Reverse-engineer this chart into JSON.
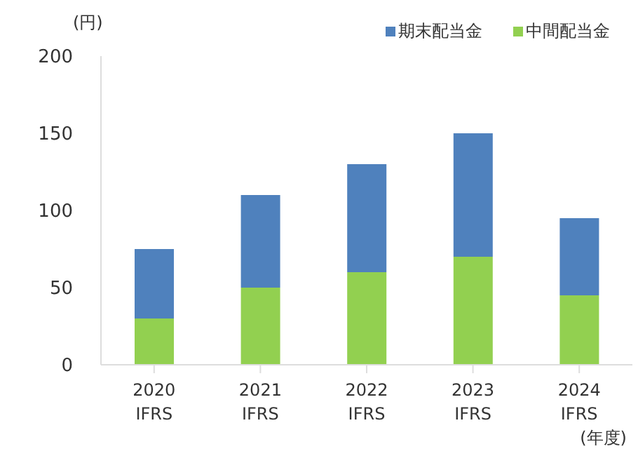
{
  "chart_data": {
    "type": "bar",
    "stacked": true,
    "ylabel": "(円)",
    "xlabel": "(年度)",
    "categories": [
      "2020\nIFRS",
      "2021\nIFRS",
      "2022\nIFRS",
      "2023\nIFRS",
      "2024\nIFRS"
    ],
    "series": [
      {
        "name": "中間配当金",
        "color": "#92d050",
        "values": [
          30,
          50,
          60,
          70,
          45
        ]
      },
      {
        "name": "期末配当金",
        "color": "#4f81bd",
        "values": [
          45,
          60,
          70,
          80,
          50
        ]
      }
    ],
    "ylim": [
      0,
      200
    ],
    "yticks": [
      0,
      50,
      100,
      150,
      200
    ],
    "grid": false,
    "legend": "top right"
  }
}
